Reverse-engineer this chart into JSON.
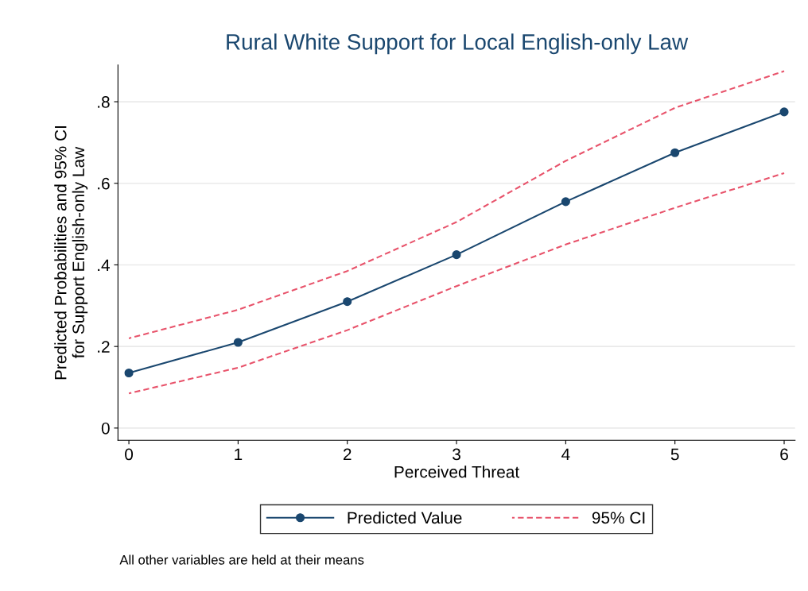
{
  "chart_data": {
    "type": "line",
    "title": "Rural White Support for Local English-only Law",
    "xlabel": "Perceived Threat",
    "ylabel": "Predicted Probabilities and 95% CI\nfor Support English-only Law",
    "x": [
      0,
      1,
      2,
      3,
      4,
      5,
      6
    ],
    "series": [
      {
        "name": "Predicted Value",
        "color": "#1a476f",
        "marker": "circle",
        "line_style": "solid",
        "values": [
          0.135,
          0.21,
          0.31,
          0.425,
          0.555,
          0.675,
          0.775
        ]
      },
      {
        "name": "95% CI",
        "color": "#e8536b",
        "marker": "none",
        "line_style": "dashed",
        "values": [
          0.22,
          0.29,
          0.385,
          0.505,
          0.655,
          0.785,
          0.875
        ]
      },
      {
        "color": "#e8536b",
        "marker": "none",
        "line_style": "dashed",
        "values": [
          0.085,
          0.148,
          0.24,
          0.348,
          0.45,
          0.54,
          0.625
        ]
      }
    ],
    "xlim": [
      -0.1,
      6.1
    ],
    "xticks": [
      0,
      1,
      2,
      3,
      4,
      5,
      6
    ],
    "ylim": [
      -0.03,
      0.89
    ],
    "yticks": [
      0,
      {
        "value": 0.2,
        "label": ".2"
      },
      {
        "value": 0.4,
        "label": ".4"
      },
      {
        "value": 0.6,
        "label": ".6"
      },
      {
        "value": 0.8,
        "label": ".8"
      }
    ],
    "grid": "y",
    "legend": "bottom",
    "annotations": [
      "All other variables are held at their means"
    ]
  }
}
